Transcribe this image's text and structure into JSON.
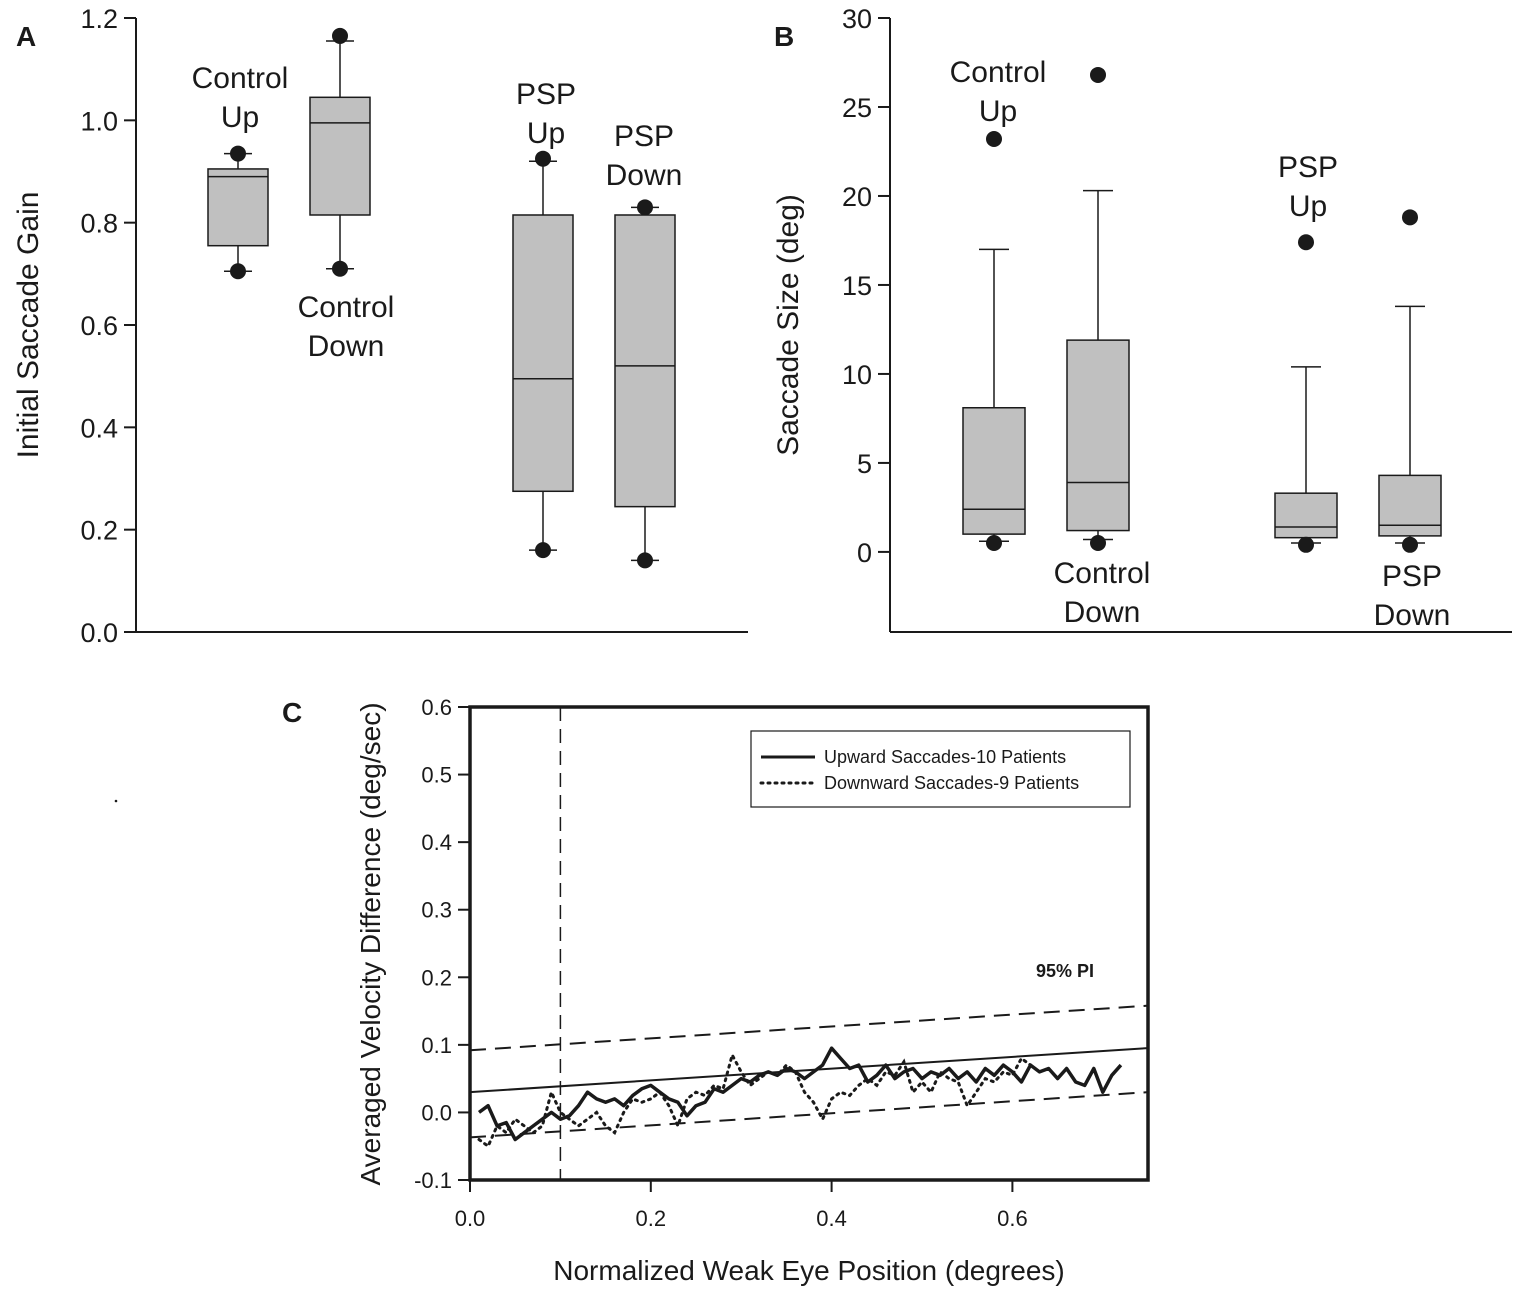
{
  "figure": {
    "background": "#ffffff",
    "ink": "#1a1a1a",
    "box_fill": "#c0c0c0"
  },
  "chart_data": [
    {
      "panel": "A",
      "type": "boxplot",
      "ylabel": "Initial Saccade Gain",
      "ylim": [
        0.0,
        1.2
      ],
      "yticks": [
        "0.0",
        "0.2",
        "0.4",
        "0.6",
        "0.8",
        "1.0",
        "1.2"
      ],
      "groups": [
        {
          "label_lines": [
            "Control",
            "Up"
          ],
          "q1": 0.755,
          "median": 0.89,
          "q3": 0.905,
          "whisker_low": 0.705,
          "whisker_high": 0.935,
          "outliers": [
            0.705,
            0.935
          ]
        },
        {
          "label_lines": [
            "Control",
            "Down"
          ],
          "q1": 0.815,
          "median": 0.995,
          "q3": 1.045,
          "whisker_low": 0.71,
          "whisker_high": 1.155,
          "outliers": [
            0.71,
            1.165
          ]
        },
        {
          "label_lines": [
            "PSP",
            "Up"
          ],
          "q1": 0.275,
          "median": 0.495,
          "q3": 0.815,
          "whisker_low": 0.16,
          "whisker_high": 0.92,
          "outliers": [
            0.16,
            0.925
          ]
        },
        {
          "label_lines": [
            "PSP",
            "Down"
          ],
          "q1": 0.245,
          "median": 0.52,
          "q3": 0.815,
          "whisker_low": 0.14,
          "whisker_high": 0.83,
          "outliers": [
            0.14,
            0.83
          ]
        }
      ]
    },
    {
      "panel": "B",
      "type": "boxplot",
      "ylabel": "Saccade Size (deg)",
      "ylim": [
        -4.5,
        30
      ],
      "yticks": [
        "0",
        "5",
        "10",
        "15",
        "20",
        "25",
        "30"
      ],
      "groups": [
        {
          "label_lines": [
            "Control",
            "Up"
          ],
          "q1": 1.0,
          "median": 2.4,
          "q3": 8.1,
          "whisker_low": 0.6,
          "whisker_high": 17.0,
          "outliers": [
            0.5,
            23.2
          ]
        },
        {
          "label_lines": [
            "Control",
            "Down"
          ],
          "q1": 1.2,
          "median": 3.9,
          "q3": 11.9,
          "whisker_low": 0.7,
          "whisker_high": 20.3,
          "outliers": [
            0.5,
            26.8
          ]
        },
        {
          "label_lines": [
            "PSP",
            "Up"
          ],
          "q1": 0.8,
          "median": 1.4,
          "q3": 3.3,
          "whisker_low": 0.5,
          "whisker_high": 10.4,
          "outliers": [
            0.4,
            17.4
          ]
        },
        {
          "label_lines": [
            "PSP",
            "Down"
          ],
          "q1": 0.9,
          "median": 1.5,
          "q3": 4.3,
          "whisker_low": 0.5,
          "whisker_high": 13.8,
          "outliers": [
            0.4,
            18.8
          ]
        }
      ]
    },
    {
      "panel": "C",
      "type": "line",
      "xlabel": "Normalized Weak Eye Position (degrees)",
      "ylabel": "Averaged Velocity Difference (deg/sec)",
      "xlim": [
        0.0,
        0.75
      ],
      "ylim": [
        -0.1,
        0.6
      ],
      "xticks": [
        "0.0",
        "0.2",
        "0.4",
        "0.6"
      ],
      "yticks": [
        "-0.1",
        "0.0",
        "0.1",
        "0.2",
        "0.3",
        "0.4",
        "0.5",
        "0.6"
      ],
      "legend_position": "top-right",
      "series": [
        {
          "name": "Upward Saccades-10 Patients",
          "style": "solid",
          "x": [
            0.01,
            0.02,
            0.03,
            0.04,
            0.05,
            0.06,
            0.07,
            0.08,
            0.09,
            0.1,
            0.11,
            0.12,
            0.13,
            0.14,
            0.15,
            0.16,
            0.17,
            0.18,
            0.19,
            0.2,
            0.21,
            0.22,
            0.23,
            0.24,
            0.25,
            0.26,
            0.27,
            0.28,
            0.29,
            0.3,
            0.31,
            0.32,
            0.33,
            0.34,
            0.35,
            0.36,
            0.37,
            0.38,
            0.39,
            0.4,
            0.41,
            0.42,
            0.43,
            0.44,
            0.45,
            0.46,
            0.47,
            0.48,
            0.49,
            0.5,
            0.51,
            0.52,
            0.53,
            0.54,
            0.55,
            0.56,
            0.57,
            0.58,
            0.59,
            0.6,
            0.61,
            0.62,
            0.63,
            0.64,
            0.65,
            0.66,
            0.67,
            0.68,
            0.69,
            0.7,
            0.71,
            0.72
          ],
          "y": [
            0.0,
            0.01,
            -0.02,
            -0.015,
            -0.04,
            -0.03,
            -0.02,
            -0.01,
            0.0,
            -0.01,
            -0.005,
            0.01,
            0.03,
            0.02,
            0.015,
            0.02,
            0.01,
            0.025,
            0.035,
            0.04,
            0.03,
            0.02,
            0.015,
            -0.005,
            0.01,
            0.015,
            0.035,
            0.03,
            0.04,
            0.05,
            0.045,
            0.055,
            0.06,
            0.055,
            0.065,
            0.06,
            0.05,
            0.06,
            0.07,
            0.095,
            0.08,
            0.065,
            0.07,
            0.045,
            0.055,
            0.07,
            0.05,
            0.06,
            0.065,
            0.05,
            0.06,
            0.055,
            0.065,
            0.05,
            0.06,
            0.045,
            0.065,
            0.055,
            0.07,
            0.06,
            0.045,
            0.07,
            0.06,
            0.065,
            0.05,
            0.065,
            0.045,
            0.04,
            0.065,
            0.03,
            0.055,
            0.07
          ],
          "fit": {
            "intercept": 0.03,
            "slope": 0.087
          }
        },
        {
          "name": "Downward Saccades-9 Patients",
          "style": "dotted",
          "x": [
            0.01,
            0.02,
            0.03,
            0.04,
            0.05,
            0.06,
            0.07,
            0.08,
            0.09,
            0.1,
            0.11,
            0.12,
            0.13,
            0.14,
            0.15,
            0.16,
            0.17,
            0.18,
            0.19,
            0.2,
            0.21,
            0.22,
            0.23,
            0.24,
            0.25,
            0.26,
            0.27,
            0.28,
            0.29,
            0.3,
            0.31,
            0.32,
            0.33,
            0.34,
            0.35,
            0.36,
            0.37,
            0.38,
            0.39,
            0.4,
            0.41,
            0.42,
            0.43,
            0.44,
            0.45,
            0.46,
            0.47,
            0.48,
            0.49,
            0.5,
            0.51,
            0.52,
            0.53,
            0.54,
            0.55,
            0.56,
            0.57,
            0.58,
            0.59,
            0.6,
            0.61,
            0.62
          ],
          "y": [
            -0.04,
            -0.05,
            -0.02,
            -0.03,
            -0.01,
            -0.02,
            -0.03,
            -0.02,
            0.03,
            0.0,
            -0.01,
            -0.02,
            -0.01,
            0.0,
            -0.02,
            -0.03,
            0.0,
            0.02,
            0.015,
            0.02,
            0.03,
            0.01,
            -0.02,
            0.02,
            0.03,
            0.025,
            0.04,
            0.035,
            0.085,
            0.06,
            0.04,
            0.05,
            0.06,
            0.055,
            0.07,
            0.06,
            0.03,
            0.015,
            -0.01,
            0.02,
            0.03,
            0.025,
            0.04,
            0.05,
            0.04,
            0.06,
            0.055,
            0.075,
            0.03,
            0.045,
            0.03,
            0.06,
            0.05,
            0.045,
            0.01,
            0.03,
            0.05,
            0.045,
            0.06,
            0.055,
            0.08,
            0.07
          ]
        }
      ],
      "reference_lines": [
        {
          "name": "95% PI upper",
          "style": "dashed",
          "y_at_x0": 0.092,
          "y_at_xmax": 0.158
        },
        {
          "name": "95% PI lower",
          "style": "dashed",
          "y_at_x0": -0.037,
          "y_at_xmax": 0.03
        },
        {
          "name": "vertical marker",
          "style": "dashed",
          "x": 0.1
        }
      ],
      "annotation": "95%  PI"
    }
  ]
}
